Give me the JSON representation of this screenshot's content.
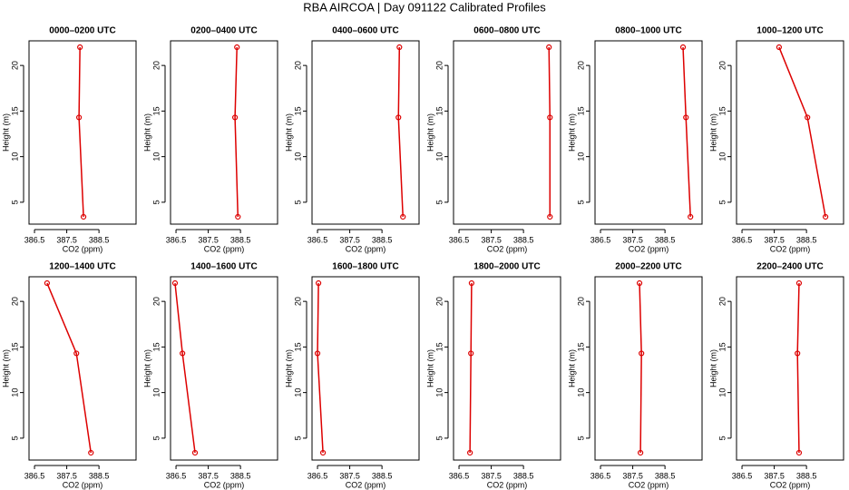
{
  "title": "RBA AIRCOA | Day 091122  Calibrated Profiles",
  "chart_data": [
    {
      "type": "line",
      "title": "0000–0200 UTC",
      "x": [
        388.02,
        387.88,
        387.91
      ],
      "values": [
        3.4,
        14.3,
        22.0
      ],
      "color": "#dd0000",
      "xlabel": "CO2 (ppm)",
      "ylabel": "Height (m)",
      "xlim": [
        386.33,
        389.65
      ],
      "ylim": [
        2.6,
        22.7
      ],
      "xticks": [
        386.5,
        387.5,
        388.5
      ],
      "yticks": [
        5,
        10,
        15,
        20
      ]
    },
    {
      "type": "line",
      "title": "0200–0400 UTC",
      "x": [
        388.42,
        388.33,
        388.39
      ],
      "values": [
        3.4,
        14.3,
        22.0
      ],
      "color": "#dd0000",
      "xlabel": "CO2 (ppm)",
      "ylabel": "Height (m)",
      "xlim": [
        386.33,
        389.65
      ],
      "ylim": [
        2.6,
        22.7
      ],
      "xticks": [
        386.5,
        387.5,
        388.5
      ],
      "yticks": [
        5,
        10,
        15,
        20
      ]
    },
    {
      "type": "line",
      "title": "0400–0600 UTC",
      "x": [
        389.15,
        389.01,
        389.04
      ],
      "values": [
        3.4,
        14.3,
        22.0
      ],
      "color": "#dd0000",
      "xlabel": "CO2 (ppm)",
      "ylabel": "Height (m)",
      "xlim": [
        386.33,
        389.65
      ],
      "ylim": [
        2.6,
        22.7
      ],
      "xticks": [
        386.5,
        387.5,
        388.5
      ],
      "yticks": [
        5,
        10,
        15,
        20
      ]
    },
    {
      "type": "line",
      "title": "0600–0800 UTC",
      "x": [
        389.32,
        389.32,
        389.29
      ],
      "values": [
        3.4,
        14.3,
        22.0
      ],
      "color": "#dd0000",
      "xlabel": "CO2 (ppm)",
      "ylabel": "Height (m)",
      "xlim": [
        386.33,
        389.65
      ],
      "ylim": [
        2.6,
        22.7
      ],
      "xticks": [
        386.5,
        387.5,
        388.5
      ],
      "yticks": [
        5,
        10,
        15,
        20
      ]
    },
    {
      "type": "line",
      "title": "0800–1000 UTC",
      "x": [
        389.29,
        389.15,
        389.06
      ],
      "values": [
        3.4,
        14.3,
        22.0
      ],
      "color": "#dd0000",
      "xlabel": "CO2 (ppm)",
      "ylabel": "Height (m)",
      "xlim": [
        386.33,
        389.65
      ],
      "ylim": [
        2.6,
        22.7
      ],
      "xticks": [
        386.5,
        387.5,
        388.5
      ],
      "yticks": [
        5,
        10,
        15,
        20
      ]
    },
    {
      "type": "line",
      "title": "1000–1200 UTC",
      "x": [
        389.09,
        388.53,
        387.65
      ],
      "values": [
        3.4,
        14.3,
        22.0
      ],
      "color": "#dd0000",
      "xlabel": "CO2 (ppm)",
      "ylabel": "Height (m)",
      "xlim": [
        386.33,
        389.65
      ],
      "ylim": [
        2.6,
        22.7
      ],
      "xticks": [
        386.5,
        387.5,
        388.5
      ],
      "yticks": [
        5,
        10,
        15,
        20
      ]
    },
    {
      "type": "line",
      "title": "1200–1400 UTC",
      "x": [
        388.25,
        387.8,
        386.89
      ],
      "values": [
        3.4,
        14.3,
        22.0
      ],
      "color": "#dd0000",
      "xlabel": "CO2 (ppm)",
      "ylabel": "Height (m)",
      "xlim": [
        386.33,
        389.65
      ],
      "ylim": [
        2.6,
        22.7
      ],
      "xticks": [
        386.5,
        387.5,
        388.5
      ],
      "yticks": [
        5,
        10,
        15,
        20
      ]
    },
    {
      "type": "line",
      "title": "1400–1600 UTC",
      "x": [
        387.09,
        386.7,
        386.47
      ],
      "values": [
        3.4,
        14.3,
        22.0
      ],
      "color": "#dd0000",
      "xlabel": "CO2 (ppm)",
      "ylabel": "Height (m)",
      "xlim": [
        386.33,
        389.65
      ],
      "ylim": [
        2.6,
        22.7
      ],
      "xticks": [
        386.5,
        387.5,
        388.5
      ],
      "yticks": [
        5,
        10,
        15,
        20
      ]
    },
    {
      "type": "line",
      "title": "1600–1800 UTC",
      "x": [
        386.67,
        386.5,
        386.53
      ],
      "values": [
        3.4,
        14.3,
        22.0
      ],
      "color": "#dd0000",
      "xlabel": "CO2 (ppm)",
      "ylabel": "Height (m)",
      "xlim": [
        386.33,
        389.65
      ],
      "ylim": [
        2.6,
        22.7
      ],
      "xticks": [
        386.5,
        387.5,
        388.5
      ],
      "yticks": [
        5,
        10,
        15,
        20
      ]
    },
    {
      "type": "line",
      "title": "1800–2000 UTC",
      "x": [
        386.84,
        386.87,
        386.89
      ],
      "values": [
        3.4,
        14.3,
        22.0
      ],
      "color": "#dd0000",
      "xlabel": "CO2 (ppm)",
      "ylabel": "Height (m)",
      "xlim": [
        386.33,
        389.65
      ],
      "ylim": [
        2.6,
        22.7
      ],
      "xticks": [
        386.5,
        387.5,
        388.5
      ],
      "yticks": [
        5,
        10,
        15,
        20
      ]
    },
    {
      "type": "line",
      "title": "2000–2200 UTC",
      "x": [
        387.74,
        387.77,
        387.71
      ],
      "values": [
        3.4,
        14.3,
        22.0
      ],
      "color": "#dd0000",
      "xlabel": "CO2 (ppm)",
      "ylabel": "Height (m)",
      "xlim": [
        386.33,
        389.65
      ],
      "ylim": [
        2.6,
        22.7
      ],
      "xticks": [
        386.5,
        387.5,
        388.5
      ],
      "yticks": [
        5,
        10,
        15,
        20
      ]
    },
    {
      "type": "line",
      "title": "2200–2400 UTC",
      "x": [
        388.27,
        388.22,
        388.27
      ],
      "values": [
        3.4,
        14.3,
        22.0
      ],
      "color": "#dd0000",
      "xlabel": "CO2 (ppm)",
      "ylabel": "Height (m)",
      "xlim": [
        386.33,
        389.65
      ],
      "ylim": [
        2.6,
        22.7
      ],
      "xticks": [
        386.5,
        387.5,
        388.5
      ],
      "yticks": [
        5,
        10,
        15,
        20
      ]
    }
  ]
}
